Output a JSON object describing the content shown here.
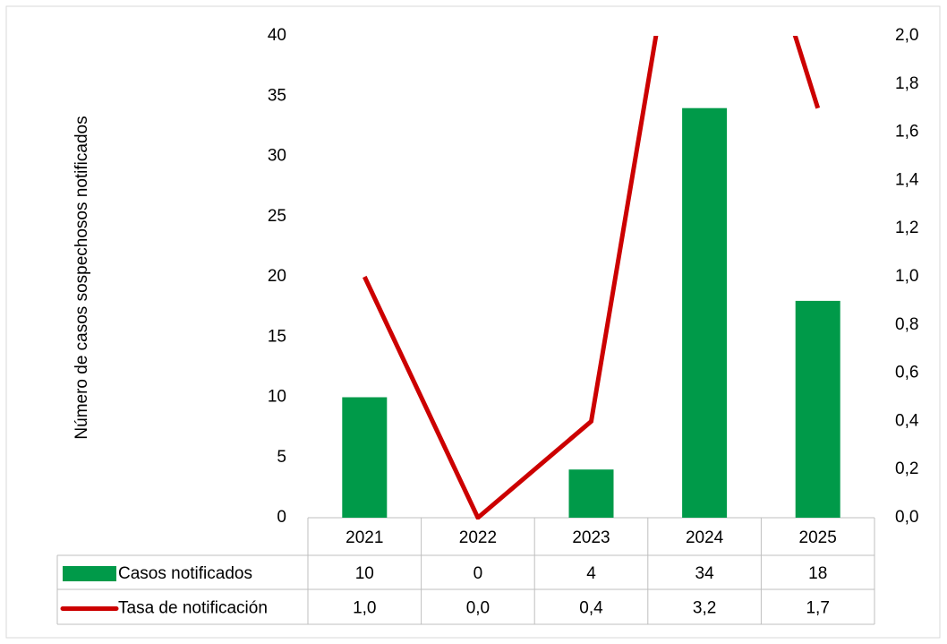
{
  "chart_data": {
    "type": "bar-line",
    "y_label": "Número de casos sospechosos notificados",
    "categories": [
      "2021",
      "2022",
      "2023",
      "2024",
      "2025"
    ],
    "series": [
      {
        "name": "Casos notificados",
        "type": "bar",
        "color": "#009a49",
        "values": [
          10,
          0,
          4,
          34,
          18
        ]
      },
      {
        "name": "Tasa de notificación",
        "type": "line",
        "axis": "y2",
        "color": "#cc0000",
        "values": [
          1.0,
          0.0,
          0.4,
          3.2,
          1.7
        ],
        "value_labels": [
          "1,0",
          "0,0",
          "0,4",
          "3,2",
          "1,7"
        ]
      }
    ],
    "ylim": [
      0,
      40
    ],
    "yticks": [
      0,
      5,
      10,
      15,
      20,
      25,
      30,
      35,
      40
    ],
    "y2lim": [
      0,
      2
    ],
    "y2ticks": [
      {
        "value": 0,
        "label": "0,0"
      },
      {
        "value": 0.2,
        "label": "0,2"
      },
      {
        "value": 0.4,
        "label": "0,4"
      },
      {
        "value": 0.6,
        "label": "0,6"
      },
      {
        "value": 0.8,
        "label": "0,8"
      },
      {
        "value": 1.0,
        "label": "1,0"
      },
      {
        "value": 1.2,
        "label": "1,2"
      },
      {
        "value": 1.4,
        "label": "1,4"
      },
      {
        "value": 1.6,
        "label": "1,6"
      },
      {
        "value": 1.8,
        "label": "1,8"
      },
      {
        "value": 2.0,
        "label": "2,0"
      }
    ],
    "data_table": true
  }
}
